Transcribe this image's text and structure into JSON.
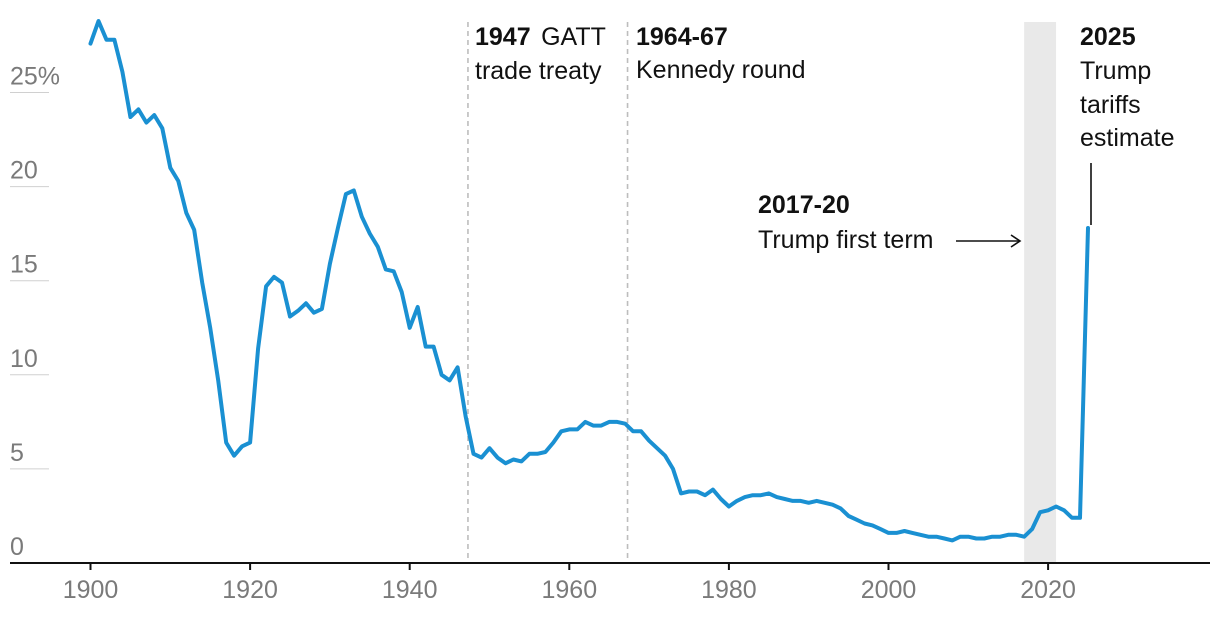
{
  "chart_data": {
    "type": "line",
    "title": "",
    "xlabel": "",
    "ylabel": "",
    "xlim": [
      1897,
      2040
    ],
    "ylim": [
      0,
      28
    ],
    "grid": "horizontal",
    "legend": "none",
    "colors": {
      "line": "#1a90d2",
      "band": "#e9e9e9",
      "text": "#111111",
      "tick": "#7a7a7a"
    },
    "y_ticks": [
      {
        "value": 0,
        "label": "0"
      },
      {
        "value": 5,
        "label": "5"
      },
      {
        "value": 10,
        "label": "10"
      },
      {
        "value": 15,
        "label": "15"
      },
      {
        "value": 20,
        "label": "20"
      },
      {
        "value": 25,
        "label": "25%"
      }
    ],
    "x_ticks": [
      {
        "value": 1900,
        "label": "1900"
      },
      {
        "value": 1920,
        "label": "1920"
      },
      {
        "value": 1940,
        "label": "1940"
      },
      {
        "value": 1960,
        "label": "1960"
      },
      {
        "value": 1980,
        "label": "1980"
      },
      {
        "value": 2000,
        "label": "2000"
      },
      {
        "value": 2020,
        "label": "2020"
      }
    ],
    "series": [
      {
        "x": [
          1900,
          1901,
          1902,
          1903,
          1904,
          1905,
          1906,
          1907,
          1908,
          1909,
          1910,
          1911,
          1912,
          1913,
          1914,
          1915,
          1916,
          1917,
          1918,
          1919,
          1920,
          1921,
          1922,
          1923,
          1924,
          1925,
          1926,
          1927,
          1928,
          1929,
          1930,
          1931,
          1932,
          1933,
          1934,
          1935,
          1936,
          1937,
          1938,
          1939,
          1940,
          1941,
          1942,
          1943,
          1944,
          1945,
          1946,
          1947,
          1948,
          1949,
          1950,
          1951,
          1952,
          1953,
          1954,
          1955,
          1956,
          1957,
          1958,
          1959,
          1960,
          1961,
          1962,
          1963,
          1964,
          1965,
          1966,
          1967,
          1968,
          1969,
          1970,
          1971,
          1972,
          1973,
          1974,
          1975,
          1976,
          1977,
          1978,
          1979,
          1980,
          1981,
          1982,
          1983,
          1984,
          1985,
          1986,
          1987,
          1988,
          1989,
          1990,
          1991,
          1992,
          1993,
          1994,
          1995,
          1996,
          1997,
          1998,
          1999,
          2000,
          2001,
          2002,
          2003,
          2004,
          2005,
          2006,
          2007,
          2008,
          2009,
          2010,
          2011,
          2012,
          2013,
          2014,
          2015,
          2016,
          2017,
          2018,
          2019,
          2020,
          2021,
          2022,
          2023,
          2024,
          2025
        ],
        "values": [
          27.6,
          28.8,
          27.8,
          27.8,
          26.1,
          23.7,
          24.1,
          23.4,
          23.8,
          23.1,
          21.0,
          20.3,
          18.6,
          17.7,
          14.9,
          12.5,
          9.7,
          6.4,
          5.7,
          6.2,
          6.4,
          11.4,
          14.7,
          15.2,
          14.9,
          13.1,
          13.4,
          13.8,
          13.3,
          13.5,
          15.9,
          17.8,
          19.6,
          19.8,
          18.4,
          17.5,
          16.8,
          15.6,
          15.5,
          14.4,
          12.5,
          13.6,
          11.5,
          11.5,
          10.0,
          9.7,
          10.4,
          7.8,
          5.8,
          5.6,
          6.1,
          5.6,
          5.3,
          5.5,
          5.4,
          5.8,
          5.8,
          5.9,
          6.4,
          7.0,
          7.1,
          7.1,
          7.5,
          7.3,
          7.3,
          7.5,
          7.5,
          7.4,
          7.0,
          7.0,
          6.5,
          6.1,
          5.7,
          5.0,
          3.7,
          3.8,
          3.8,
          3.6,
          3.9,
          3.4,
          3.0,
          3.3,
          3.5,
          3.6,
          3.6,
          3.7,
          3.5,
          3.4,
          3.3,
          3.3,
          3.2,
          3.3,
          3.2,
          3.1,
          2.9,
          2.5,
          2.3,
          2.1,
          2.0,
          1.8,
          1.6,
          1.6,
          1.7,
          1.6,
          1.5,
          1.4,
          1.4,
          1.3,
          1.2,
          1.4,
          1.4,
          1.3,
          1.3,
          1.4,
          1.4,
          1.5,
          1.5,
          1.4,
          1.8,
          2.7,
          2.8,
          3.0,
          2.8,
          2.4,
          2.4,
          17.8
        ]
      }
    ],
    "annotations": [
      {
        "bold": "1947",
        "text": "GATT",
        "text2": "trade treaty"
      },
      {
        "bold": "1964-67",
        "text": "Kennedy round"
      },
      {
        "bold": "2017-20",
        "text": "Trump first term"
      },
      {
        "bold": "2025",
        "lines": [
          "Trump",
          "tariffs",
          "estimate"
        ]
      }
    ],
    "markers": {
      "gatt_year": 1947.3,
      "kennedy_year": 1967.3,
      "band_start": 2017,
      "band_end": 2021
    }
  }
}
